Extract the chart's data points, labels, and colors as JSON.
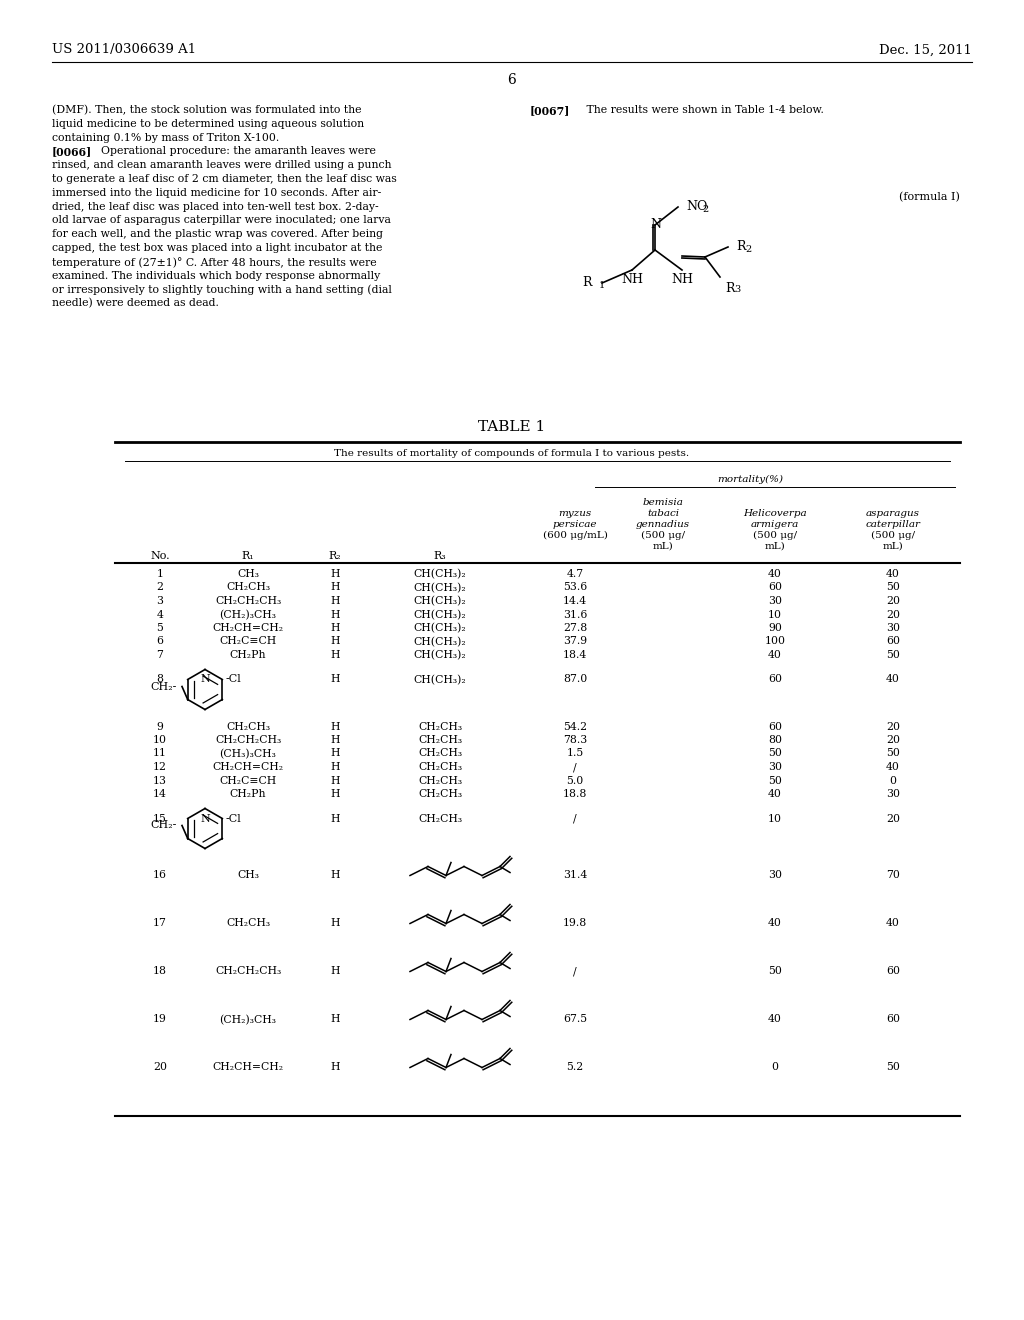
{
  "background_color": "#ffffff",
  "page_width": 10.24,
  "page_height": 13.2,
  "header_left": "US 2011/0306639 A1",
  "header_right": "Dec. 15, 2011",
  "page_number": "6",
  "left_col_lines": [
    "(DMF). Then, the stock solution was formulated into the",
    "liquid medicine to be determined using aqueous solution",
    "containing 0.1% by mass of Triton X-100.",
    "[0066]",
    "Operational procedure: the amaranth leaves were",
    "rinsed, and clean amaranth leaves were drilled using a punch",
    "to generate a leaf disc of 2 cm diameter, then the leaf disc was",
    "immersed into the liquid medicine for 10 seconds. After air-",
    "dried, the leaf disc was placed into ten-well test box. 2-day-",
    "old larvae of asparagus caterpillar were inoculated; one larva",
    "for each well, and the plastic wrap was covered. After being",
    "capped, the test box was placed into a light incubator at the",
    "temperature of (27±1)° C. After 48 hours, the results were",
    "examined. The individuals which body response abnormally",
    "or irresponsively to slightly touching with a hand setting (dial",
    "needle) were deemed as dead."
  ],
  "table_title": "TABLE 1",
  "table_subtitle": "The results of mortality of compounds of formula I to various pests.",
  "mortality_label": "mortality(%)"
}
